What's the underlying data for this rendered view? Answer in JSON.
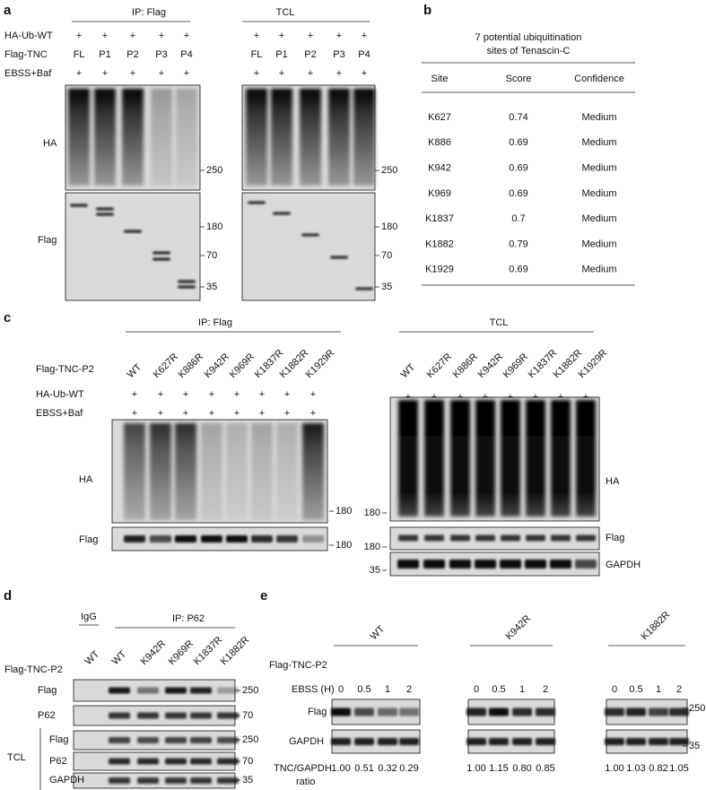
{
  "a": {
    "label": "a",
    "ip": "IP: Flag",
    "tcl": "TCL",
    "rows": [
      {
        "label": "HA-Ub-WT",
        "ip": [
          "+",
          "+",
          "+",
          "+",
          "+"
        ],
        "tcl": [
          "+",
          "+",
          "+",
          "+",
          "+"
        ]
      },
      {
        "label": "Flag-TNC",
        "ip": [
          "FL",
          "P1",
          "P2",
          "P3",
          "P4"
        ],
        "tcl": [
          "FL",
          "P1",
          "P2",
          "P3",
          "P4"
        ]
      },
      {
        "label": "EBSS+Baf",
        "ip": [
          "+",
          "+",
          "+",
          "+",
          "+"
        ],
        "tcl": [
          "+",
          "+",
          "+",
          "+",
          "+"
        ]
      }
    ],
    "blots": [
      {
        "label": "HA",
        "ip_markers": [
          250
        ],
        "tcl_markers": [
          250
        ]
      },
      {
        "label": "Flag",
        "ip_markers": [
          180,
          70,
          35
        ],
        "tcl_markers": [
          180,
          70,
          35
        ]
      }
    ]
  },
  "b": {
    "label": "b",
    "title": [
      "7 potential ubiquitination",
      "sites of Tenascin-C"
    ],
    "columns": [
      "Site",
      "Score",
      "Confidence"
    ],
    "rows": [
      [
        "K627",
        0.74,
        "Medium"
      ],
      [
        "K886",
        0.69,
        "Medium"
      ],
      [
        "K942",
        0.69,
        "Medium"
      ],
      [
        "K969",
        0.69,
        "Medium"
      ],
      [
        "K1837",
        0.7,
        "Medium"
      ],
      [
        "K1882",
        0.79,
        "Medium"
      ],
      [
        "K1929",
        0.69,
        "Medium"
      ]
    ]
  },
  "c": {
    "label": "c",
    "ip": "IP: Flag",
    "tcl": "TCL",
    "lane_title": "Flag-TNC-P2",
    "ip_lanes": [
      "WT",
      "K627R",
      "K886R",
      "K942R",
      "K969R",
      "K1837R",
      "K1882R",
      "K1929R"
    ],
    "tcl_lanes": [
      "WT",
      "K627R",
      "K886R",
      "K942R",
      "K969R",
      "K1837R",
      "K1882R",
      "K1929R"
    ],
    "rows": [
      {
        "label": "HA-Ub-WT",
        "ip": [
          "+",
          "+",
          "+",
          "+",
          "+",
          "+",
          "+",
          "+"
        ],
        "tcl": [
          "+",
          "+",
          "+",
          "+",
          "+",
          "+",
          "+",
          "+"
        ]
      },
      {
        "label": "EBSS+Baf",
        "ip": [
          "+",
          "+",
          "+",
          "+",
          "+",
          "+",
          "+",
          "+"
        ],
        "tcl": [
          "+",
          "+",
          "+",
          "+",
          "+",
          "+",
          "+",
          "+"
        ]
      }
    ],
    "ip_blots": [
      {
        "label": "HA",
        "markers": [
          180
        ]
      },
      {
        "label": "Flag",
        "markers": [
          180
        ]
      }
    ],
    "tcl_blots": [
      {
        "label": "HA",
        "markers": [
          180
        ]
      },
      {
        "label": "Flag",
        "markers": [
          180
        ]
      },
      {
        "label": "GAPDH",
        "markers": [
          35
        ]
      }
    ]
  },
  "d": {
    "label": "d",
    "igg": "IgG",
    "ip": "IP: P62",
    "lane_title": "Flag-TNC-P2",
    "lanes": [
      "WT",
      "WT",
      "K942R",
      "K969R",
      "K1837R",
      "K1882R"
    ],
    "ip_blots": [
      {
        "label": "Flag",
        "markers": [
          250
        ]
      },
      {
        "label": "P62",
        "markers": [
          70
        ]
      }
    ],
    "tcl": "TCL",
    "tcl_blots": [
      {
        "label": "Flag",
        "markers": [
          250
        ]
      },
      {
        "label": "P62",
        "markers": [
          70
        ]
      },
      {
        "label": "GAPDH",
        "markers": [
          35
        ]
      }
    ]
  },
  "e": {
    "label": "e",
    "lane_title": "Flag-TNC-P2",
    "time_label": "EBSS (H)",
    "groups": [
      {
        "name": "WT",
        "times": [
          0,
          0.5,
          1,
          2
        ],
        "ratios": [
          "1.00",
          "0.51",
          "0.32",
          "0.29"
        ]
      },
      {
        "name": "K942R",
        "times": [
          0,
          0.5,
          1,
          2
        ],
        "ratios": [
          "1.00",
          "1.15",
          "0.80",
          "0.85"
        ]
      },
      {
        "name": "K1882R",
        "times": [
          0,
          0.5,
          1,
          2
        ],
        "ratios": [
          "1.00",
          "1.03",
          "0.82",
          "1.05"
        ]
      }
    ],
    "blots": [
      {
        "label": "Flag",
        "markers": [
          250
        ]
      },
      {
        "label": "GAPDH",
        "markers": [
          35
        ]
      }
    ],
    "ratio_label": [
      "TNC/GAPDH",
      "ratio"
    ]
  }
}
